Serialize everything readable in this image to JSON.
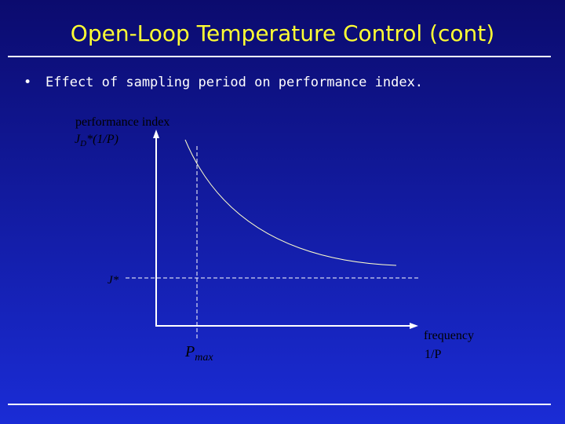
{
  "slide": {
    "title": "Open-Loop Temperature Control (cont)",
    "bullet_marker": "•",
    "bullet": "Effect of sampling period on performance index."
  },
  "diagram": {
    "y_axis_label_line1": "performance index",
    "y_axis_label_line2_main": "J",
    "y_axis_label_line2_sub": "D",
    "y_axis_label_line2_rest": "*(1/P)",
    "x_axis_label_line1": "frequency",
    "x_axis_label_line2": "1/P",
    "threshold_label": "J*",
    "marker_label_main": "P",
    "marker_label_sub": "max"
  },
  "colors": {
    "title": "#ffff33",
    "text": "#ffffff",
    "axis": "#ffffff",
    "curve": "#ffffcc",
    "diagram_text": "#000000"
  }
}
